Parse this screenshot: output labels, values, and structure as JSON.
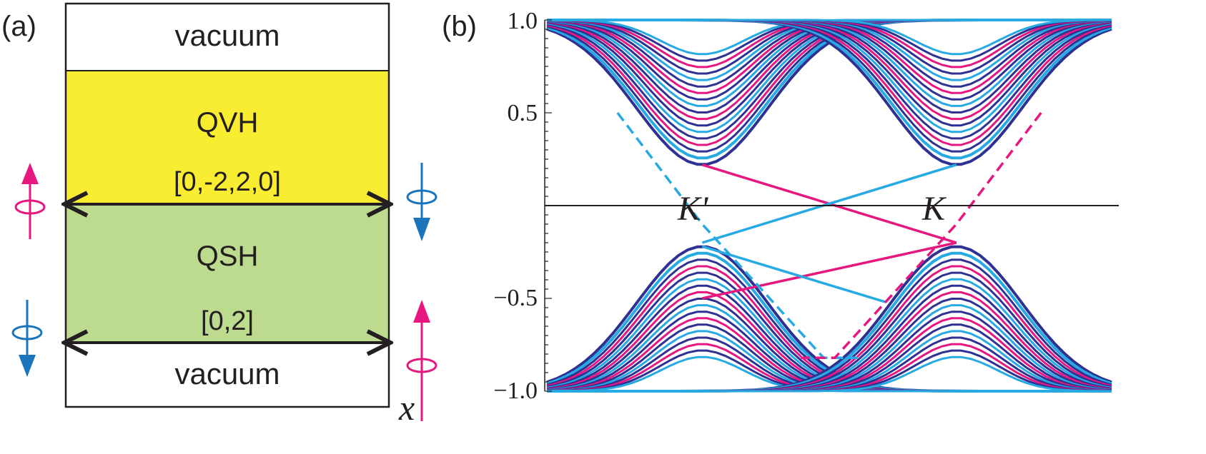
{
  "panel_a": {
    "label": "(a)",
    "regions": {
      "vacuum_top": "vacuum",
      "qvh": "QVH",
      "qsh": "QSH",
      "vacuum_bottom": "vacuum"
    },
    "indices": {
      "qvh_qsh_interface": "[0,-2,2,0]",
      "qsh_vacuum_interface": "[0,2]"
    },
    "axis_label": "x",
    "colors": {
      "vacuum": "#ffffff",
      "qvh": "#f9ed32",
      "qsh": "#bcdb8e",
      "spin_up": "#e6177f",
      "spin_down": "#1b75bc"
    },
    "spin_icons": [
      {
        "name": "spin-up-icon",
        "edge": "top interface, left"
      },
      {
        "name": "spin-down-icon",
        "edge": "top interface, right"
      },
      {
        "name": "spin-down-icon",
        "edge": "bottom interface, left"
      },
      {
        "name": "spin-up-icon",
        "edge": "bottom interface, right"
      }
    ]
  },
  "panel_b": {
    "label": "(b)",
    "valley_labels": {
      "left": "K'",
      "right": "K"
    },
    "y_ticks": [
      "1.0",
      "0.5",
      "−0.5",
      "−1.0"
    ]
  },
  "chart_data": {
    "type": "line",
    "description_source": "band structure panel (b)",
    "ylim": [
      -1.0,
      1.0
    ],
    "y_tick_values": [
      1.0,
      0.5,
      -0.5,
      -1.0
    ],
    "x_range": [
      -1.0,
      1.0
    ],
    "zero_line": true,
    "colors": {
      "bulk": "#2e3192",
      "spin_up": "#e6177f",
      "spin_down": "#27aae1"
    },
    "bulk_bands": {
      "valleys": [
        -0.45,
        0.45
      ],
      "gap_edge": 0.22,
      "bandwidth": 1.0,
      "count_per_valley": 18
    },
    "edge_states": [
      {
        "color": "spin_up",
        "style": "solid",
        "points": [
          [
            -0.45,
            0.22
          ],
          [
            0.45,
            -0.2
          ]
        ]
      },
      {
        "color": "spin_down",
        "style": "solid",
        "points": [
          [
            -0.45,
            -0.2
          ],
          [
            0.45,
            0.22
          ]
        ]
      },
      {
        "color": "spin_up",
        "style": "solid",
        "points": [
          [
            -0.45,
            -0.5
          ],
          [
            0.45,
            -0.2
          ]
        ]
      },
      {
        "color": "spin_down",
        "style": "solid",
        "points": [
          [
            -0.45,
            -0.22
          ],
          [
            0.2,
            -0.52
          ]
        ]
      },
      {
        "color": "spin_down",
        "style": "dashed",
        "points": [
          [
            -0.75,
            0.5
          ],
          [
            -0.45,
            -0.1
          ],
          [
            -0.02,
            -0.82
          ],
          [
            0.1,
            -0.82
          ]
        ]
      },
      {
        "color": "spin_up",
        "style": "dashed",
        "points": [
          [
            0.75,
            0.5
          ],
          [
            0.45,
            -0.1
          ],
          [
            0.02,
            -0.82
          ],
          [
            -0.1,
            -0.82
          ]
        ]
      }
    ]
  }
}
